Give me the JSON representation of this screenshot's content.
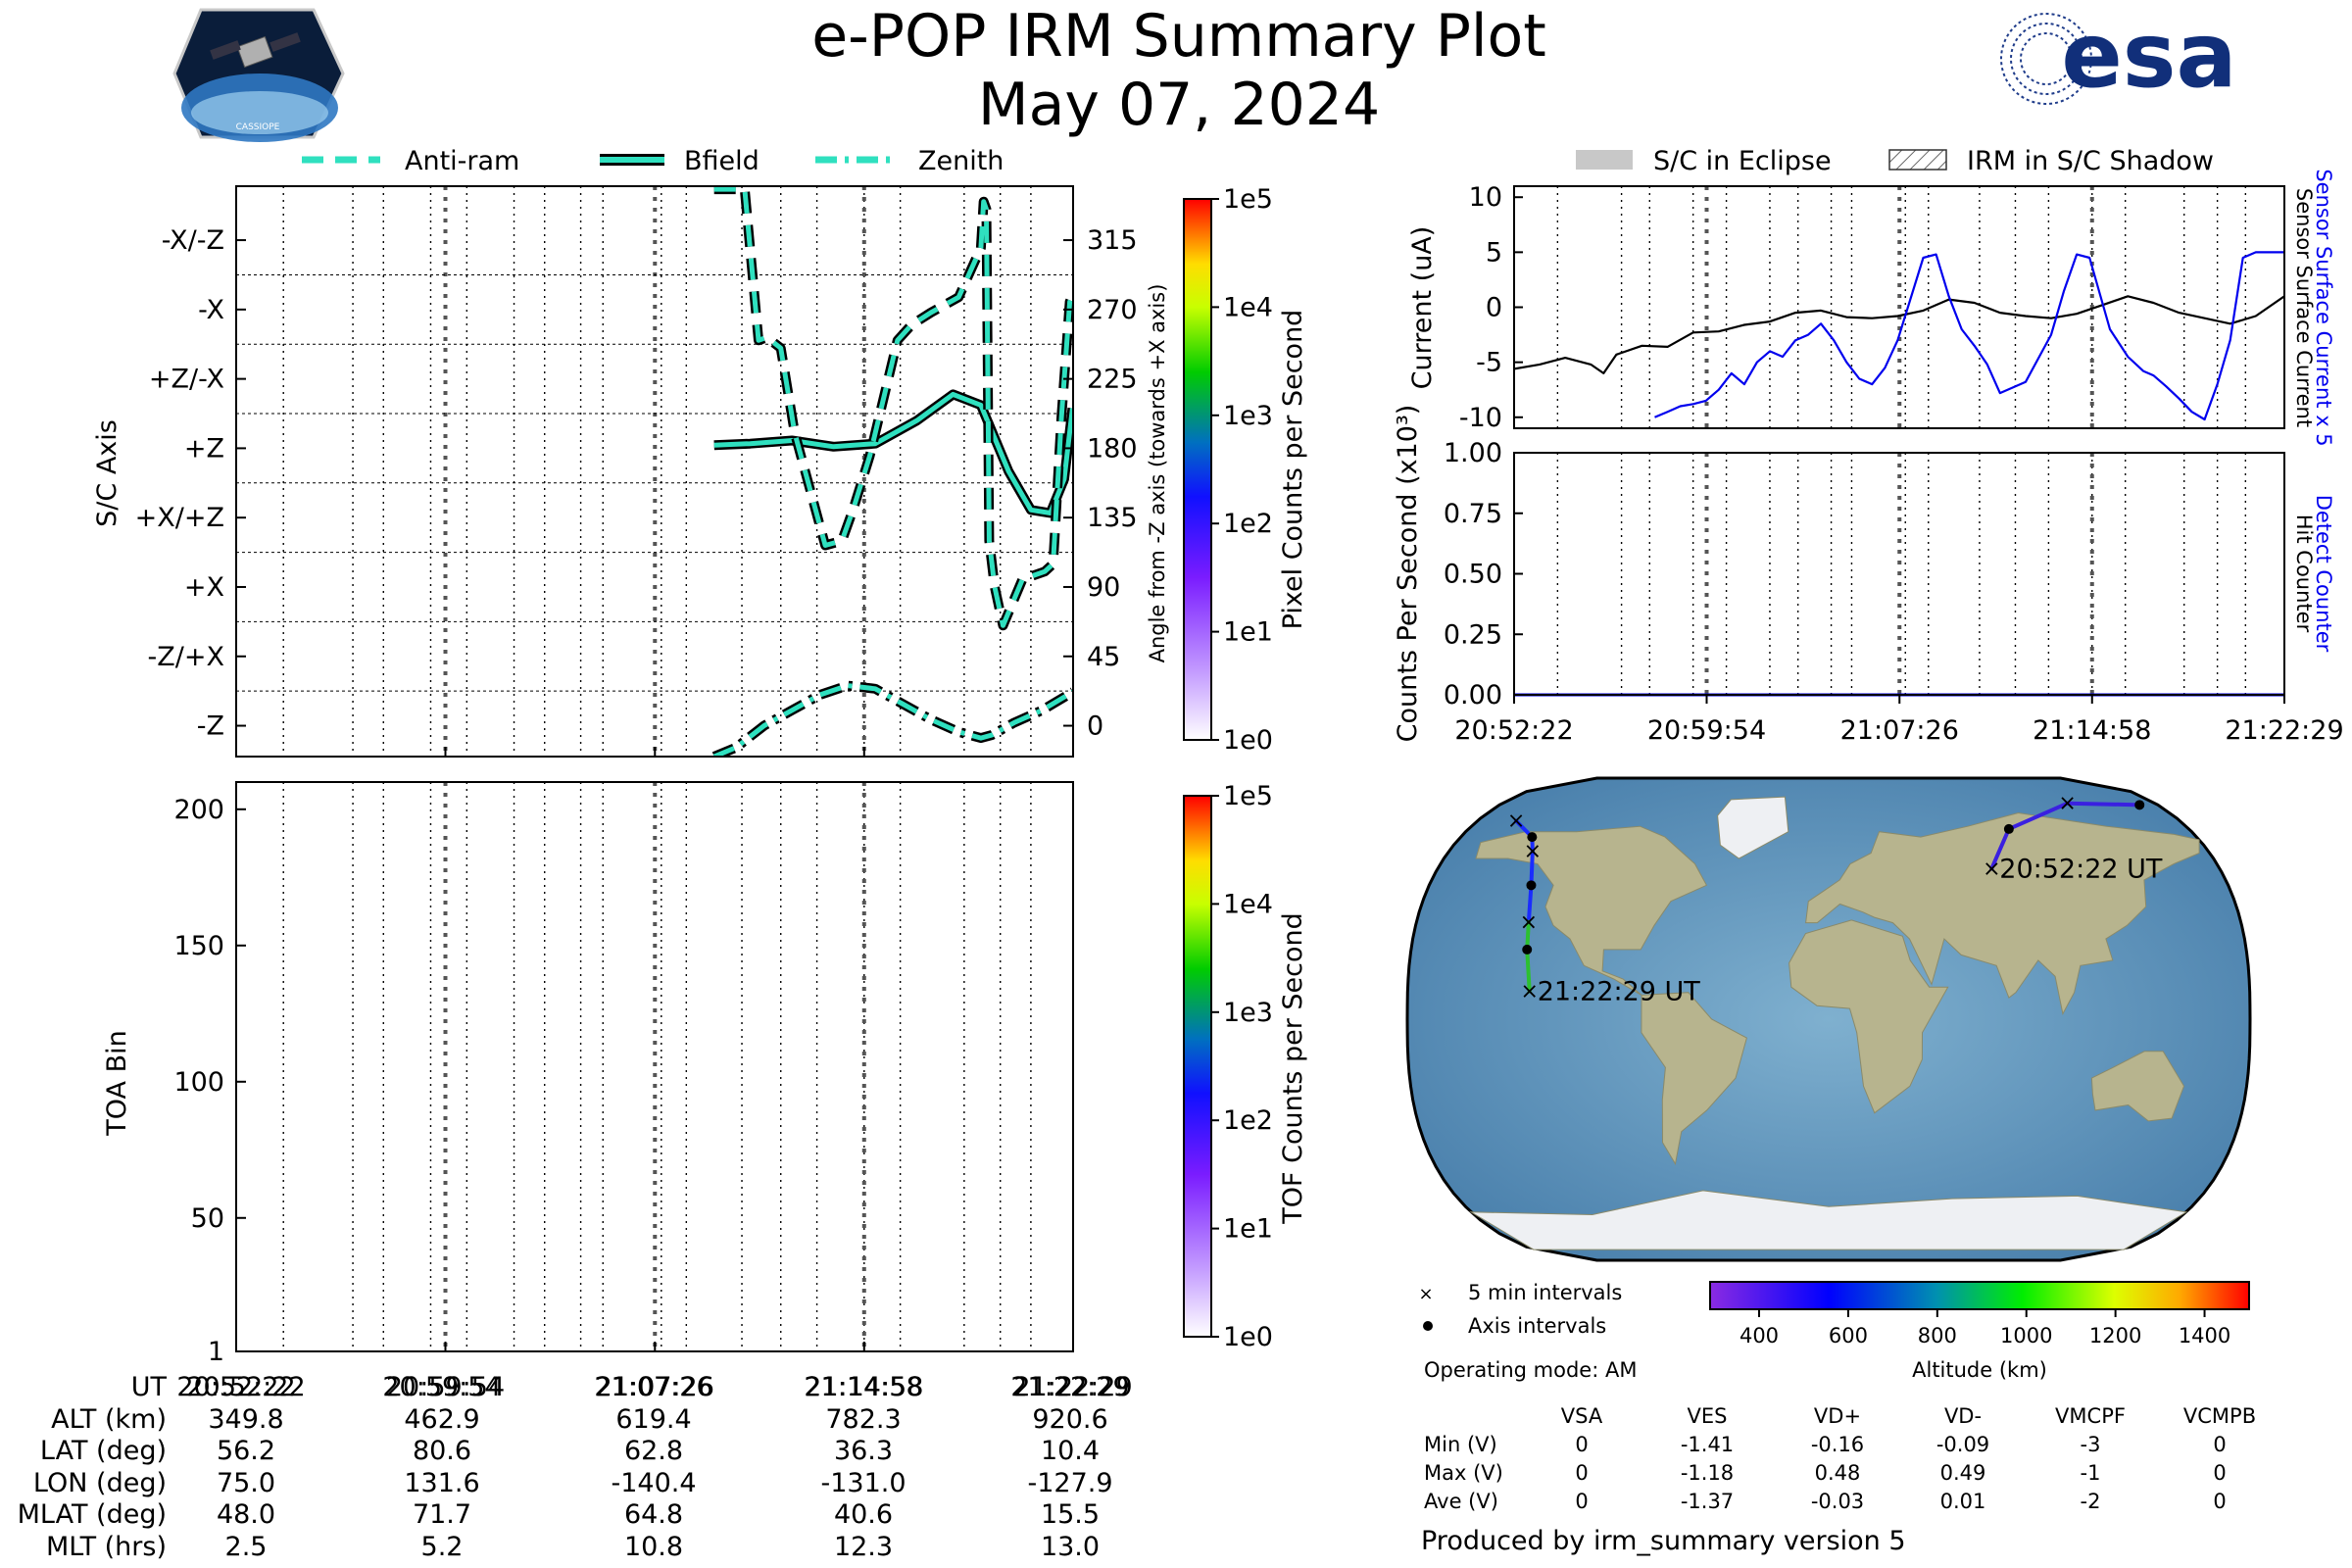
{
  "header": {
    "title": "e-POP IRM Summary Plot",
    "date": "May 07, 2024",
    "left_logo_text": "CASSIOPE",
    "right_logo_text": "esa"
  },
  "legend_top": {
    "anti_ram": "Anti-ram",
    "bfield": "Bfield",
    "zenith": "Zenith"
  },
  "legend_right": {
    "eclipse": "S/C in Eclipse",
    "shadow": "IRM in S/C Shadow"
  },
  "colors": {
    "trace": "#2fe0bf",
    "sensor_current_x5": "#0000ee",
    "surface_current": "#000000"
  },
  "chart_data": [
    {
      "id": "sc_axis",
      "type": "line",
      "ylabel": "S/C Axis",
      "ylabel_right": "Angle from -Z axis (towards +X axis)",
      "y_tick_labels_left": [
        "-X/-Z",
        "-X",
        "+Z/-X",
        "+Z",
        "+X/+Z",
        "+X",
        "-Z/+X",
        "-Z"
      ],
      "y_tick_labels_right": [
        "315",
        "270",
        "225",
        "180",
        "135",
        "90",
        "45",
        "0"
      ],
      "ylim": [
        -20,
        350
      ],
      "xlim_min": [
        0,
        30.12
      ],
      "x_tick_labels": [
        "20:52:22",
        "20:59:54",
        "21:07:26",
        "21:14:58",
        "21:22:29"
      ],
      "series": [
        {
          "name": "Bfield",
          "style": "solid",
          "x": [
            17.2,
            18.5,
            20.0,
            21.5,
            23.0,
            24.5,
            25.8,
            26.8,
            27.8,
            28.6,
            29.3,
            29.8,
            30.1
          ],
          "y": [
            182,
            183,
            185,
            181,
            183,
            198,
            215,
            208,
            165,
            140,
            138,
            160,
            206
          ]
        },
        {
          "name": "Anti-ram",
          "style": "dashed",
          "x": [
            17.2,
            17.6,
            18.3,
            18.8,
            19.1,
            19.6,
            20.1,
            21.2,
            21.8,
            22.2,
            22.8,
            23.8,
            24.3,
            25.0,
            26.0,
            26.8,
            26.9,
            27.0,
            27.1,
            27.3,
            27.6,
            28.3,
            29.1,
            29.4,
            29.7,
            30.0,
            30.12
          ],
          "y": [
            348,
            348,
            348,
            250,
            252,
            245,
            190,
            117,
            120,
            140,
            175,
            250,
            260,
            268,
            278,
            310,
            340,
            335,
            120,
            90,
            65,
            95,
            100,
            105,
            200,
            275,
            280
          ]
        },
        {
          "name": "Zenith",
          "style": "dashdot",
          "x": [
            17.2,
            18.0,
            19.0,
            20.0,
            21.0,
            22.0,
            23.0,
            24.0,
            25.0,
            26.0,
            26.8,
            27.2,
            28.0,
            29.0,
            30.12
          ],
          "y": [
            -20,
            -14,
            0,
            10,
            20,
            26,
            24,
            14,
            4,
            -4,
            -8,
            -6,
            2,
            10,
            22
          ]
        }
      ]
    },
    {
      "id": "pixel_colorbar",
      "type": "heatmap",
      "label": "Pixel Counts per Second",
      "tick_labels": [
        "1e5",
        "1e4",
        "1e3",
        "1e2",
        "1e1",
        "1e0"
      ]
    },
    {
      "id": "toa",
      "type": "heatmap",
      "ylabel": "TOA Bin",
      "ylim": [
        1,
        210
      ],
      "y_tick_labels": [
        "200",
        "150",
        "100",
        "50",
        "1"
      ],
      "y_tick_values": [
        200,
        150,
        100,
        50,
        1
      ],
      "x_tick_labels": [
        "20:52:22",
        "20:59:54",
        "21:07:26",
        "21:14:58",
        "21:22:29"
      ]
    },
    {
      "id": "tof_colorbar",
      "type": "heatmap",
      "label": "TOF Counts per Second",
      "tick_labels": [
        "1e5",
        "1e4",
        "1e3",
        "1e2",
        "1e1",
        "1e0"
      ]
    },
    {
      "id": "current",
      "type": "line",
      "ylabel": "Current (uA)",
      "ylim": [
        -11,
        11
      ],
      "y_tick_labels": [
        "10",
        "5",
        "0",
        "-5",
        "-10"
      ],
      "y_tick_values": [
        10,
        5,
        0,
        -5,
        -10
      ],
      "xlim_min": [
        0,
        30.12
      ],
      "right_label_blue": "Sensor Surface Current x 5",
      "right_label_black": "Sensor Surface Current",
      "series": [
        {
          "name": "Sensor Surface Current",
          "color": "#000000",
          "x": [
            0,
            1,
            2,
            3,
            3.5,
            4,
            5,
            6,
            7,
            8,
            9,
            10,
            11,
            12,
            13,
            14,
            15,
            16,
            17,
            18,
            19,
            20,
            21,
            22,
            23,
            24,
            25,
            26,
            27,
            28,
            29,
            30.12
          ],
          "y": [
            -5.6,
            -5.2,
            -4.6,
            -5.2,
            -6,
            -4.3,
            -3.5,
            -3.6,
            -2.3,
            -2.2,
            -1.6,
            -1.3,
            -0.5,
            -0.3,
            -0.9,
            -1.0,
            -0.8,
            -0.3,
            0.7,
            0.4,
            -0.5,
            -0.8,
            -1.0,
            -0.6,
            0.2,
            1.0,
            0.4,
            -0.5,
            -1.0,
            -1.5,
            -0.8,
            1.0
          ]
        },
        {
          "name": "Sensor Surface Current x 5",
          "color": "#0000ee",
          "x": [
            5.5,
            6,
            6.5,
            7,
            7.5,
            8,
            8.5,
            9,
            9.5,
            10,
            10.5,
            11,
            11.5,
            12,
            12.5,
            13,
            13.5,
            14,
            14.5,
            15,
            16,
            16.5,
            17,
            17.5,
            18,
            18.5,
            19,
            20,
            21,
            21.5,
            22,
            22.5,
            23.3,
            24,
            24.6,
            25,
            25.5,
            26,
            26.5,
            27,
            27.5,
            28,
            28.5,
            29,
            29.5,
            30.12
          ],
          "y": [
            -10,
            -9.5,
            -9,
            -8.8,
            -8.5,
            -7.5,
            -6,
            -7,
            -5,
            -4,
            -4.5,
            -3,
            -2.5,
            -1.5,
            -3,
            -5,
            -6.5,
            -7,
            -5.5,
            -3,
            4.5,
            4.8,
            1,
            -2,
            -3.5,
            -5.2,
            -7.8,
            -6.8,
            -2.5,
            1.5,
            4.8,
            4.5,
            -2,
            -4.5,
            -5.8,
            -6.2,
            -7.2,
            -8.3,
            -9.5,
            -10.2,
            -7,
            -3,
            4.5,
            5.0,
            5.0,
            5.0
          ]
        }
      ]
    },
    {
      "id": "counts",
      "type": "line",
      "ylabel": "Counts Per Second (x10³)",
      "ylim": [
        0,
        1.0
      ],
      "y_tick_labels": [
        "1.00",
        "0.75",
        "0.50",
        "0.25",
        "0.00"
      ],
      "y_tick_values": [
        1.0,
        0.75,
        0.5,
        0.25,
        0.0
      ],
      "x_tick_labels": [
        "20:52:22",
        "20:59:54",
        "21:07:26",
        "21:14:58",
        "21:22:29"
      ],
      "right_label_blue": "Detect Counter",
      "right_label_black": "Hit Counter",
      "series": [
        {
          "name": "Detect Counter",
          "x": [
            0,
            30.12
          ],
          "y": [
            0,
            0
          ]
        }
      ]
    },
    {
      "id": "ground_track",
      "type": "scatter",
      "start_label": "20:52:22 UT",
      "end_label": "21:22:29 UT",
      "track_lon_lat": [
        [
          75.0,
          56.2
        ],
        [
          90,
          71
        ],
        [
          131.6,
          80.6
        ],
        [
          170,
          80
        ],
        [
          -160,
          74
        ],
        [
          -145,
          68
        ],
        [
          -140.4,
          62.8
        ],
        [
          -134,
          50
        ],
        [
          -131.0,
          36.3
        ],
        [
          -130,
          26
        ],
        [
          -127.9,
          10.4
        ]
      ]
    },
    {
      "id": "altitude_colorbar",
      "type": "heatmap",
      "label": "Altitude (km)",
      "tick_labels": [
        "400",
        "600",
        "800",
        "1000",
        "1200",
        "1400"
      ]
    }
  ],
  "map_legend": {
    "five_min": "5 min intervals",
    "axis": "Axis intervals",
    "mode": "Operating mode: AM"
  },
  "ephemeris": {
    "row_labels": [
      "UT",
      "ALT (km)",
      "LAT (deg)",
      "LON (deg)",
      "MLAT (deg)",
      "MLT (hrs)"
    ],
    "columns": [
      [
        "20:52:22",
        "349.8",
        "56.2",
        "75.0",
        "48.0",
        "2.5"
      ],
      [
        "20:59:54",
        "462.9",
        "80.6",
        "131.6",
        "71.7",
        "5.2"
      ],
      [
        "21:07:26",
        "619.4",
        "62.8",
        "-140.4",
        "64.8",
        "10.8"
      ],
      [
        "21:14:58",
        "782.3",
        "36.3",
        "-131.0",
        "40.6",
        "12.3"
      ],
      [
        "21:22:29",
        "920.6",
        "10.4",
        "-127.9",
        "15.5",
        "13.0"
      ]
    ]
  },
  "voltage_table": {
    "headers": [
      "VSA",
      "VES",
      "VD+",
      "VD-",
      "VMCPF",
      "VCMPB"
    ],
    "rows": [
      {
        "label": "Min (V)",
        "values": [
          "0",
          "-1.41",
          "-0.16",
          "-0.09",
          "-3",
          "0"
        ]
      },
      {
        "label": "Max (V)",
        "values": [
          "0",
          "-1.18",
          "0.48",
          "0.49",
          "-1",
          "0"
        ]
      },
      {
        "label": "Ave (V)",
        "values": [
          "0",
          "-1.37",
          "-0.03",
          "0.01",
          "-2",
          "0"
        ]
      }
    ]
  },
  "footer": "Produced by irm_summary version 5"
}
